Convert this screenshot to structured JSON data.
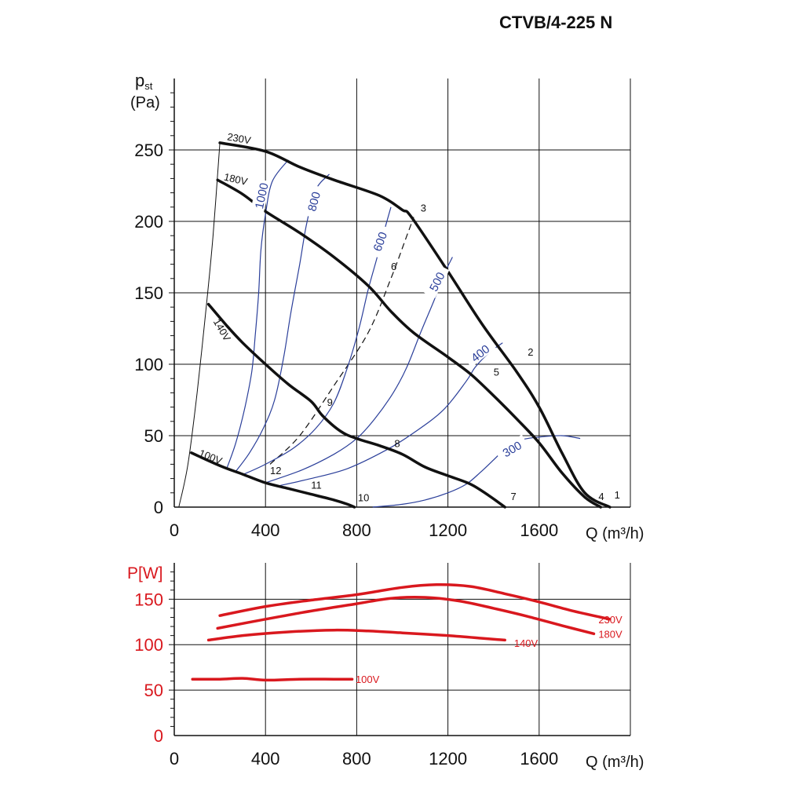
{
  "title": "CTVB/4-225 N",
  "chart_data": [
    {
      "type": "line",
      "name": "pressure",
      "ylabel_main": "p",
      "ylabel_sub": "st",
      "yunit": "(Pa)",
      "xlabel": "Q (m³/h)",
      "xlim": [
        0,
        2000
      ],
      "ylim": [
        0,
        300
      ],
      "xticks": [
        0,
        400,
        800,
        1200,
        1600
      ],
      "yticks": [
        0,
        50,
        100,
        150,
        200,
        250
      ],
      "grid": true,
      "colors": {
        "fan": "#111111",
        "iso": "#2b3f9a",
        "dash": "#111111",
        "grid": "#111111"
      },
      "series": [
        {
          "name": "230V",
          "points": [
            [
              200,
              255
            ],
            [
              400,
              249
            ],
            [
              550,
              238
            ],
            [
              700,
              229
            ],
            [
              900,
              218
            ],
            [
              1000,
              208
            ],
            [
              1040,
              203
            ],
            [
              1200,
              165
            ],
            [
              1350,
              128
            ],
            [
              1500,
              95
            ],
            [
              1600,
              70
            ],
            [
              1700,
              38
            ],
            [
              1800,
              10
            ],
            [
              1910,
              0
            ]
          ]
        },
        {
          "name": "180V",
          "points": [
            [
              190,
              229
            ],
            [
              300,
              219
            ],
            [
              400,
              207
            ],
            [
              550,
              192
            ],
            [
              700,
              175
            ],
            [
              850,
              155
            ],
            [
              950,
              137
            ],
            [
              1050,
              122
            ],
            [
              1200,
              105
            ],
            [
              1300,
              93
            ],
            [
              1400,
              78
            ],
            [
              1500,
              62
            ],
            [
              1600,
              45
            ],
            [
              1700,
              24
            ],
            [
              1800,
              7
            ],
            [
              1870,
              0
            ]
          ]
        },
        {
          "name": "140V",
          "points": [
            [
              150,
              142
            ],
            [
              230,
              127
            ],
            [
              300,
              115
            ],
            [
              400,
              100
            ],
            [
              500,
              86
            ],
            [
              600,
              74
            ],
            [
              650,
              64
            ],
            [
              730,
              53
            ],
            [
              800,
              48
            ],
            [
              900,
              43
            ],
            [
              1000,
              37
            ],
            [
              1100,
              28
            ],
            [
              1200,
              22
            ],
            [
              1300,
              16
            ],
            [
              1380,
              8
            ],
            [
              1450,
              0
            ]
          ]
        },
        {
          "name": "100V",
          "points": [
            [
              75,
              38
            ],
            [
              200,
              29
            ],
            [
              300,
              23
            ],
            [
              400,
              17
            ],
            [
              500,
              13
            ],
            [
              600,
              9
            ],
            [
              700,
              5
            ],
            [
              760,
              2
            ],
            [
              790,
              0
            ]
          ]
        }
      ],
      "iso_lines": [
        {
          "label": "300",
          "points": [
            [
              870,
              0
            ],
            [
              1000,
              2
            ],
            [
              1100,
              5
            ],
            [
              1200,
              10
            ],
            [
              1280,
              16
            ],
            [
              1340,
              24
            ],
            [
              1400,
              33
            ],
            [
              1460,
              42
            ],
            [
              1520,
              47
            ],
            [
              1600,
              49
            ],
            [
              1700,
              50
            ],
            [
              1780,
              48
            ]
          ]
        },
        {
          "label": "400",
          "points": [
            [
              460,
              15
            ],
            [
              600,
              20
            ],
            [
              760,
              27
            ],
            [
              930,
              40
            ],
            [
              1050,
              52
            ],
            [
              1180,
              68
            ],
            [
              1280,
              88
            ],
            [
              1320,
              98
            ],
            [
              1380,
              108
            ],
            [
              1440,
              115
            ]
          ]
        },
        {
          "label": "500",
          "points": [
            [
              400,
              17
            ],
            [
              560,
              26
            ],
            [
              700,
              37
            ],
            [
              800,
              48
            ],
            [
              880,
              62
            ],
            [
              960,
              80
            ],
            [
              1020,
              98
            ],
            [
              1080,
              122
            ],
            [
              1140,
              145
            ],
            [
              1180,
              162
            ],
            [
              1220,
              175
            ]
          ]
        },
        {
          "label": "600",
          "points": [
            [
              305,
              23
            ],
            [
              400,
              30
            ],
            [
              520,
              41
            ],
            [
              620,
              55
            ],
            [
              700,
              73
            ],
            [
              760,
              98
            ],
            [
              810,
              125
            ],
            [
              850,
              152
            ],
            [
              890,
              175
            ],
            [
              920,
              193
            ],
            [
              950,
              210
            ]
          ]
        },
        {
          "label": "800",
          "points": [
            [
              270,
              25
            ],
            [
              330,
              38
            ],
            [
              390,
              55
            ],
            [
              440,
              75
            ],
            [
              480,
              105
            ],
            [
              510,
              135
            ],
            [
              550,
              170
            ],
            [
              580,
              198
            ],
            [
              620,
              222
            ],
            [
              680,
              233
            ]
          ]
        },
        {
          "label": "1000",
          "points": [
            [
              230,
              27
            ],
            [
              270,
              45
            ],
            [
              310,
              70
            ],
            [
              340,
              95
            ],
            [
              355,
              120
            ],
            [
              370,
              150
            ],
            [
              380,
              180
            ],
            [
              400,
              205
            ],
            [
              430,
              228
            ],
            [
              500,
              243
            ]
          ]
        }
      ],
      "system_line": {
        "points": [
          [
            420,
            30
          ],
          [
            550,
            50
          ],
          [
            700,
            85
          ],
          [
            850,
            122
          ],
          [
            950,
            160
          ],
          [
            1020,
            190
          ],
          [
            1050,
            203
          ]
        ]
      },
      "low_curve": {
        "points": [
          [
            20,
            0
          ],
          [
            60,
            30
          ],
          [
            100,
            80
          ],
          [
            140,
            140
          ],
          [
            170,
            190
          ],
          [
            200,
            255
          ]
        ]
      },
      "point_labels": [
        {
          "text": "1",
          "q": 1930,
          "p": 6
        },
        {
          "text": "2",
          "q": 1550,
          "p": 106
        },
        {
          "text": "3",
          "q": 1080,
          "p": 207
        },
        {
          "text": "4",
          "q": 1860,
          "p": 5
        },
        {
          "text": "5",
          "q": 1400,
          "p": 92
        },
        {
          "text": "6",
          "q": 950,
          "p": 166
        },
        {
          "text": "7",
          "q": 1475,
          "p": 5
        },
        {
          "text": "8",
          "q": 965,
          "p": 42
        },
        {
          "text": "9",
          "q": 670,
          "p": 71
        },
        {
          "text": "10",
          "q": 805,
          "p": 4
        },
        {
          "text": "11",
          "q": 600,
          "p": 13
        },
        {
          "text": "12",
          "q": 420,
          "p": 23
        }
      ],
      "voltage_labels": [
        {
          "text": "230V",
          "q": 230,
          "p": 257,
          "rot": 10
        },
        {
          "text": "180V",
          "q": 215,
          "p": 229,
          "rot": 13
        },
        {
          "text": "140V",
          "q": 170,
          "p": 130,
          "rot": 60
        },
        {
          "text": "100V",
          "q": 105,
          "p": 36,
          "rot": 22
        }
      ]
    },
    {
      "type": "line",
      "name": "power",
      "ylabel": "P[W]",
      "xlabel": "Q (m³/h)",
      "xlim": [
        0,
        2000
      ],
      "ylim": [
        0,
        190
      ],
      "xticks": [
        0,
        400,
        800,
        1200,
        1600
      ],
      "yticks": [
        0,
        50,
        100,
        150
      ],
      "grid": true,
      "colors": {
        "curve": "#d9181e",
        "label": "#d9181e"
      },
      "series": [
        {
          "name": "230V",
          "points": [
            [
              200,
              132
            ],
            [
              400,
              142
            ],
            [
              600,
              149
            ],
            [
              800,
              155
            ],
            [
              1000,
              163
            ],
            [
              1150,
              166
            ],
            [
              1300,
              164
            ],
            [
              1450,
              156
            ],
            [
              1600,
              147
            ],
            [
              1750,
              137
            ],
            [
              1910,
              128
            ]
          ]
        },
        {
          "name": "180V",
          "points": [
            [
              190,
              118
            ],
            [
              400,
              128
            ],
            [
              600,
              137
            ],
            [
              800,
              145
            ],
            [
              950,
              151
            ],
            [
              1100,
              152
            ],
            [
              1250,
              148
            ],
            [
              1400,
              140
            ],
            [
              1550,
              131
            ],
            [
              1700,
              121
            ],
            [
              1840,
              112
            ]
          ]
        },
        {
          "name": "140V",
          "points": [
            [
              150,
              105
            ],
            [
              300,
              110
            ],
            [
              500,
              114
            ],
            [
              700,
              116
            ],
            [
              850,
              115
            ],
            [
              1000,
              113
            ],
            [
              1200,
              110
            ],
            [
              1350,
              107
            ],
            [
              1450,
              105
            ]
          ]
        },
        {
          "name": "100V",
          "points": [
            [
              80,
              62
            ],
            [
              200,
              62
            ],
            [
              300,
              63
            ],
            [
              400,
              61
            ],
            [
              550,
              62
            ],
            [
              700,
              62
            ],
            [
              780,
              62
            ]
          ]
        }
      ],
      "labels": [
        {
          "text": "230V",
          "q": 1860,
          "p": 128
        },
        {
          "text": "180V",
          "q": 1860,
          "p": 112
        },
        {
          "text": "140V",
          "q": 1490,
          "p": 102
        },
        {
          "text": "100V",
          "q": 795,
          "p": 62
        }
      ]
    }
  ]
}
